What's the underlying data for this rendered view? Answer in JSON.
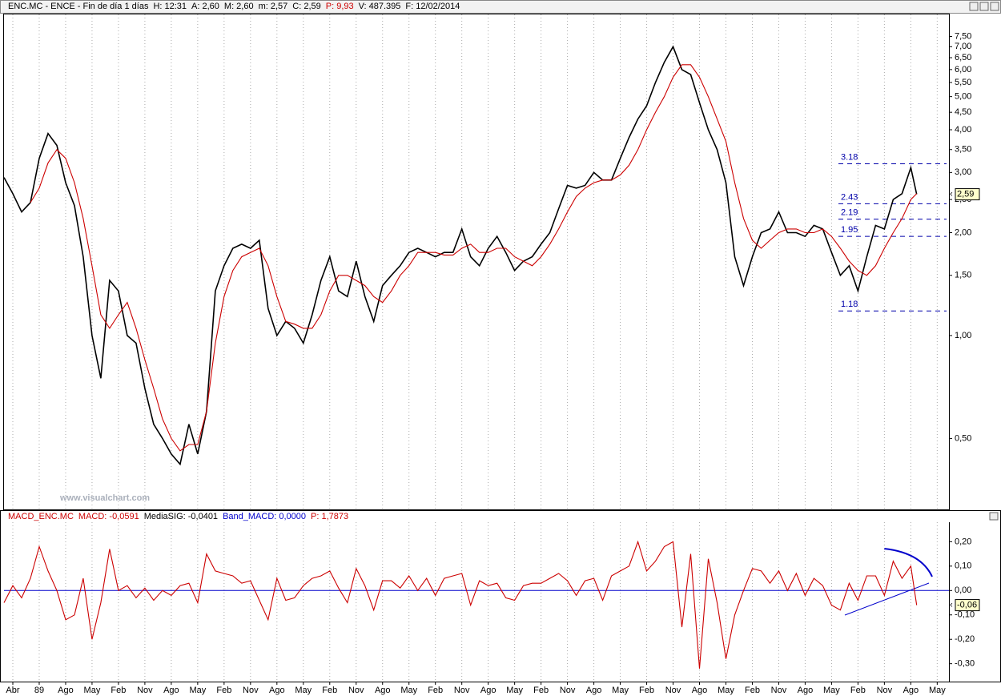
{
  "chart_data": [
    {
      "type": "line",
      "title": "ENC.MC - ENCE - Fin de día 1 días",
      "info": [
        "H: 12:31",
        "A: 2,60",
        "M: 2,60",
        "m: 2,57",
        "C: 2,59",
        "P: 9,93",
        "V: 487.395",
        "F: 12/02/2014"
      ],
      "watermark": "www.visualchart.com",
      "log_scale": true,
      "grid": true,
      "x": [
        0,
        3,
        6,
        9,
        12,
        15,
        18,
        21,
        24,
        27,
        30,
        33,
        36,
        39,
        42,
        45,
        48,
        51,
        54,
        57,
        60,
        63,
        66,
        69,
        72,
        75,
        78,
        81,
        84,
        87,
        90,
        93,
        96,
        99,
        102,
        105,
        108,
        111,
        114,
        117,
        120,
        123,
        126,
        129,
        132,
        135,
        138,
        141,
        144,
        147,
        150,
        153,
        156,
        159,
        162,
        165,
        168,
        171,
        174,
        177,
        180,
        183,
        186,
        189,
        192,
        195,
        198,
        201,
        204,
        207,
        210,
        213,
        216,
        219,
        222,
        225,
        228,
        231,
        234,
        237,
        240,
        243,
        246,
        249,
        252,
        255,
        258,
        261,
        264,
        267,
        270,
        273,
        276,
        279,
        282,
        285,
        288,
        291,
        294,
        297,
        300,
        303,
        306,
        309,
        311
      ],
      "series": [
        {
          "color": "#000000",
          "values": [
            2.9,
            2.6,
            2.3,
            2.45,
            3.3,
            3.9,
            3.6,
            2.8,
            2.4,
            1.7,
            1.0,
            0.75,
            1.45,
            1.35,
            1.0,
            0.95,
            0.7,
            0.55,
            0.5,
            0.45,
            0.42,
            0.55,
            0.45,
            0.6,
            1.35,
            1.6,
            1.8,
            1.85,
            1.8,
            1.9,
            1.2,
            1.0,
            1.1,
            1.05,
            0.95,
            1.15,
            1.45,
            1.7,
            1.35,
            1.3,
            1.65,
            1.3,
            1.1,
            1.4,
            1.5,
            1.6,
            1.75,
            1.8,
            1.75,
            1.7,
            1.75,
            1.75,
            2.05,
            1.7,
            1.6,
            1.8,
            1.95,
            1.75,
            1.55,
            1.65,
            1.7,
            1.85,
            2.0,
            2.35,
            2.75,
            2.7,
            2.75,
            3.0,
            2.85,
            2.85,
            3.3,
            3.8,
            4.3,
            4.7,
            5.5,
            6.3,
            7.0,
            6.0,
            5.8,
            4.8,
            4.0,
            3.5,
            2.8,
            1.7,
            1.4,
            1.7,
            2.0,
            2.05,
            2.3,
            2.0,
            2.0,
            1.95,
            2.1,
            2.05,
            1.75,
            1.5,
            1.6,
            1.35,
            1.7,
            2.1,
            2.05,
            2.5,
            2.6,
            3.1,
            2.59
          ]
        },
        {
          "color": "#cc0000",
          "values": [
            null,
            null,
            null,
            2.45,
            2.7,
            3.2,
            3.5,
            3.3,
            2.8,
            2.2,
            1.6,
            1.15,
            1.05,
            1.15,
            1.25,
            1.05,
            0.85,
            0.7,
            0.57,
            0.5,
            0.46,
            0.48,
            0.48,
            0.6,
            0.95,
            1.3,
            1.55,
            1.7,
            1.75,
            1.8,
            1.6,
            1.3,
            1.1,
            1.08,
            1.05,
            1.05,
            1.15,
            1.35,
            1.5,
            1.5,
            1.45,
            1.4,
            1.3,
            1.25,
            1.35,
            1.5,
            1.6,
            1.75,
            1.75,
            1.75,
            1.72,
            1.72,
            1.8,
            1.85,
            1.75,
            1.75,
            1.8,
            1.8,
            1.7,
            1.65,
            1.6,
            1.7,
            1.85,
            2.05,
            2.3,
            2.55,
            2.7,
            2.8,
            2.85,
            2.85,
            2.95,
            3.15,
            3.5,
            4.0,
            4.5,
            5.0,
            5.7,
            6.2,
            6.2,
            5.7,
            5.0,
            4.3,
            3.7,
            2.8,
            2.2,
            1.9,
            1.8,
            1.9,
            2.0,
            2.05,
            2.05,
            2.0,
            2.0,
            2.05,
            1.95,
            1.8,
            1.65,
            1.55,
            1.5,
            1.6,
            1.8,
            2.0,
            2.2,
            2.5,
            2.6
          ]
        }
      ],
      "last_value": {
        "value": 2.59,
        "label": "2,59"
      },
      "levels": [
        3.18,
        2.43,
        2.19,
        1.95,
        1.18
      ],
      "level_color": "#0000aa",
      "xlim": [
        0,
        322
      ],
      "ylim": [
        0.31,
        8.7
      ],
      "yticks": [
        {
          "value": 0.5,
          "label": "0,50"
        },
        {
          "value": 1,
          "label": "1,00"
        },
        {
          "value": 1.5,
          "label": "1,50"
        },
        {
          "value": 2,
          "label": "2,00"
        },
        {
          "value": 2.5,
          "label": "2,50"
        },
        {
          "value": 3,
          "label": "3,00"
        },
        {
          "value": 3.5,
          "label": "3,50"
        },
        {
          "value": 4,
          "label": "4,00"
        },
        {
          "value": 4.5,
          "label": "4,50"
        },
        {
          "value": 5,
          "label": "5,00"
        },
        {
          "value": 5.5,
          "label": "5,50"
        },
        {
          "value": 6,
          "label": "6,00"
        },
        {
          "value": 6.5,
          "label": "6,50"
        },
        {
          "value": 7,
          "label": "7,00"
        },
        {
          "value": 7.5,
          "label": "7,50"
        }
      ]
    },
    {
      "type": "line",
      "title": "MACD_ENC.MC",
      "info": [
        "MACD: -0,0591",
        "MediaSIG: -0,0401",
        "Band_MACD: 0,0000",
        "P: 1,7873"
      ],
      "grid": true,
      "zero_line_color": "#0000cc",
      "x": [
        0,
        3,
        6,
        9,
        12,
        15,
        18,
        21,
        24,
        27,
        30,
        33,
        36,
        39,
        42,
        45,
        48,
        51,
        54,
        57,
        60,
        63,
        66,
        69,
        72,
        75,
        78,
        81,
        84,
        87,
        90,
        93,
        96,
        99,
        102,
        105,
        108,
        111,
        114,
        117,
        120,
        123,
        126,
        129,
        132,
        135,
        138,
        141,
        144,
        147,
        150,
        153,
        156,
        159,
        162,
        165,
        168,
        171,
        174,
        177,
        180,
        183,
        186,
        189,
        192,
        195,
        198,
        201,
        204,
        207,
        210,
        213,
        216,
        219,
        222,
        225,
        228,
        231,
        234,
        237,
        240,
        243,
        246,
        249,
        252,
        255,
        258,
        261,
        264,
        267,
        270,
        273,
        276,
        279,
        282,
        285,
        288,
        291,
        294,
        297,
        300,
        303,
        306,
        309,
        311
      ],
      "series": [
        {
          "color": "#cc0000",
          "values": [
            -0.05,
            0.02,
            -0.03,
            0.05,
            0.18,
            0.08,
            0.0,
            -0.12,
            -0.1,
            0.05,
            -0.2,
            -0.05,
            0.17,
            0.0,
            0.02,
            -0.03,
            0.01,
            -0.04,
            0.0,
            -0.02,
            0.02,
            0.03,
            -0.05,
            0.15,
            0.08,
            0.07,
            0.06,
            0.03,
            0.04,
            -0.04,
            -0.12,
            0.05,
            -0.04,
            -0.03,
            0.02,
            0.05,
            0.06,
            0.08,
            0.01,
            -0.05,
            0.09,
            0.02,
            -0.08,
            0.04,
            0.04,
            0.01,
            0.06,
            0.0,
            0.05,
            -0.02,
            0.05,
            0.06,
            0.07,
            -0.06,
            0.04,
            0.02,
            0.03,
            -0.03,
            -0.04,
            0.02,
            0.03,
            0.03,
            0.05,
            0.07,
            0.04,
            -0.02,
            0.04,
            0.05,
            -0.04,
            0.06,
            0.08,
            0.1,
            0.2,
            0.08,
            0.12,
            0.18,
            0.2,
            -0.15,
            0.15,
            -0.32,
            0.13,
            -0.05,
            -0.28,
            -0.1,
            0.0,
            0.09,
            0.08,
            0.03,
            0.08,
            0.0,
            0.07,
            -0.02,
            0.05,
            0.02,
            -0.06,
            -0.08,
            0.03,
            -0.04,
            0.06,
            0.06,
            -0.02,
            0.12,
            0.05,
            0.1,
            -0.06
          ]
        }
      ],
      "last_value": {
        "value": -0.06,
        "label": "-0,06"
      },
      "xlim": [
        0,
        322
      ],
      "ylim": [
        -0.37,
        0.28
      ],
      "yticks": [
        {
          "value": 0.2,
          "label": "0,20"
        },
        {
          "value": 0.1,
          "label": "0,10"
        },
        {
          "value": 0,
          "label": "0,00"
        },
        {
          "value": -0.1,
          "label": "-0,10"
        },
        {
          "value": -0.2,
          "label": "-0,20"
        },
        {
          "value": -0.3,
          "label": "-0,30"
        }
      ],
      "xticks": [
        {
          "value": 3,
          "label": "Abr"
        },
        {
          "value": 12,
          "label": "89"
        },
        {
          "value": 21,
          "label": "Ago"
        },
        {
          "value": 30,
          "label": "May"
        },
        {
          "value": 39,
          "label": "Feb"
        },
        {
          "value": 48,
          "label": "Nov"
        },
        {
          "value": 57,
          "label": "Ago"
        },
        {
          "value": 66,
          "label": "May"
        },
        {
          "value": 75,
          "label": "Feb"
        },
        {
          "value": 84,
          "label": "Nov"
        },
        {
          "value": 93,
          "label": "Ago"
        },
        {
          "value": 102,
          "label": "May"
        },
        {
          "value": 111,
          "label": "Feb"
        },
        {
          "value": 120,
          "label": "Nov"
        },
        {
          "value": 129,
          "label": "Ago"
        },
        {
          "value": 138,
          "label": "May"
        },
        {
          "value": 147,
          "label": "Feb"
        },
        {
          "value": 156,
          "label": "Nov"
        },
        {
          "value": 165,
          "label": "Ago"
        },
        {
          "value": 174,
          "label": "May"
        },
        {
          "value": 183,
          "label": "Feb"
        },
        {
          "value": 192,
          "label": "Nov"
        },
        {
          "value": 201,
          "label": "Ago"
        },
        {
          "value": 210,
          "label": "May"
        },
        {
          "value": 219,
          "label": "Feb"
        },
        {
          "value": 228,
          "label": "Nov"
        },
        {
          "value": 237,
          "label": "Ago"
        },
        {
          "value": 246,
          "label": "May"
        },
        {
          "value": 255,
          "label": "Feb"
        },
        {
          "value": 264,
          "label": "Nov"
        },
        {
          "value": 273,
          "label": "Ago"
        },
        {
          "value": 282,
          "label": "May"
        },
        {
          "value": 291,
          "label": "Feb"
        },
        {
          "value": 300,
          "label": "Nov"
        },
        {
          "value": 309,
          "label": "Ago"
        },
        {
          "value": 318,
          "label": "May"
        }
      ]
    }
  ]
}
